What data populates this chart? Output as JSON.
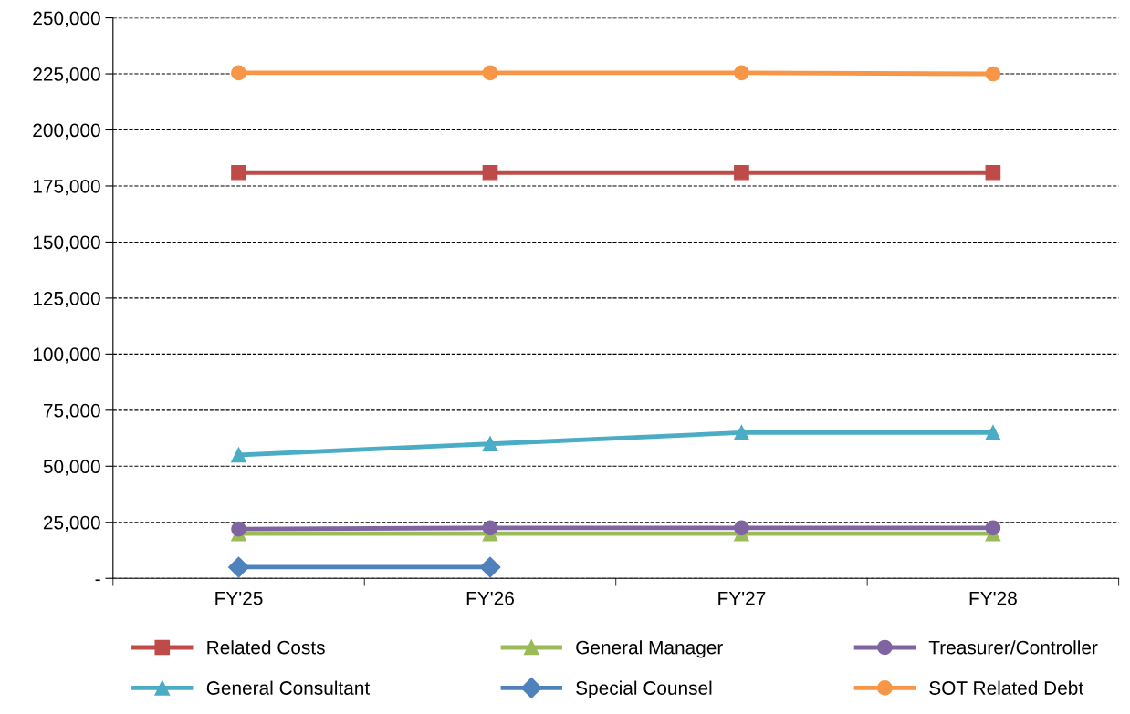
{
  "chart_data": {
    "type": "line",
    "categories": [
      "FY'25",
      "FY'26",
      "FY'27",
      "FY'28"
    ],
    "series": [
      {
        "name": "Related Costs",
        "color": "#be4b48",
        "marker": "square",
        "values": [
          181000,
          181000,
          181000,
          181000
        ]
      },
      {
        "name": "General Manager",
        "color": "#9bbb59",
        "marker": "triangle",
        "values": [
          20000,
          20000,
          20000,
          20000
        ]
      },
      {
        "name": "Treasurer/Controller",
        "color": "#8064a2",
        "marker": "circle",
        "values": [
          22000,
          22500,
          22500,
          22500
        ]
      },
      {
        "name": "General Consultant",
        "color": "#4bacc6",
        "marker": "triangle",
        "values": [
          55000,
          60000,
          65000,
          65000
        ]
      },
      {
        "name": "Special Counsel",
        "color": "#4f81bd",
        "marker": "diamond",
        "values": [
          5000,
          5000,
          null,
          null
        ]
      },
      {
        "name": "SOT Related Debt",
        "color": "#f79646",
        "marker": "circle",
        "values": [
          225500,
          225500,
          225500,
          225000
        ]
      }
    ],
    "ylim": [
      0,
      250000
    ],
    "yticks": [
      {
        "value": 0,
        "label": "-"
      },
      {
        "value": 25000,
        "label": "25,000"
      },
      {
        "value": 50000,
        "label": "50,000"
      },
      {
        "value": 75000,
        "label": "75,000"
      },
      {
        "value": 100000,
        "label": "100,000"
      },
      {
        "value": 125000,
        "label": "125,000"
      },
      {
        "value": 150000,
        "label": "150,000"
      },
      {
        "value": 175000,
        "label": "175,000"
      },
      {
        "value": 200000,
        "label": "200,000"
      },
      {
        "value": 225000,
        "label": "225,000"
      },
      {
        "value": 250000,
        "label": "250,000"
      }
    ],
    "grid": "y",
    "legend": "bottom",
    "line_style": "solid"
  }
}
